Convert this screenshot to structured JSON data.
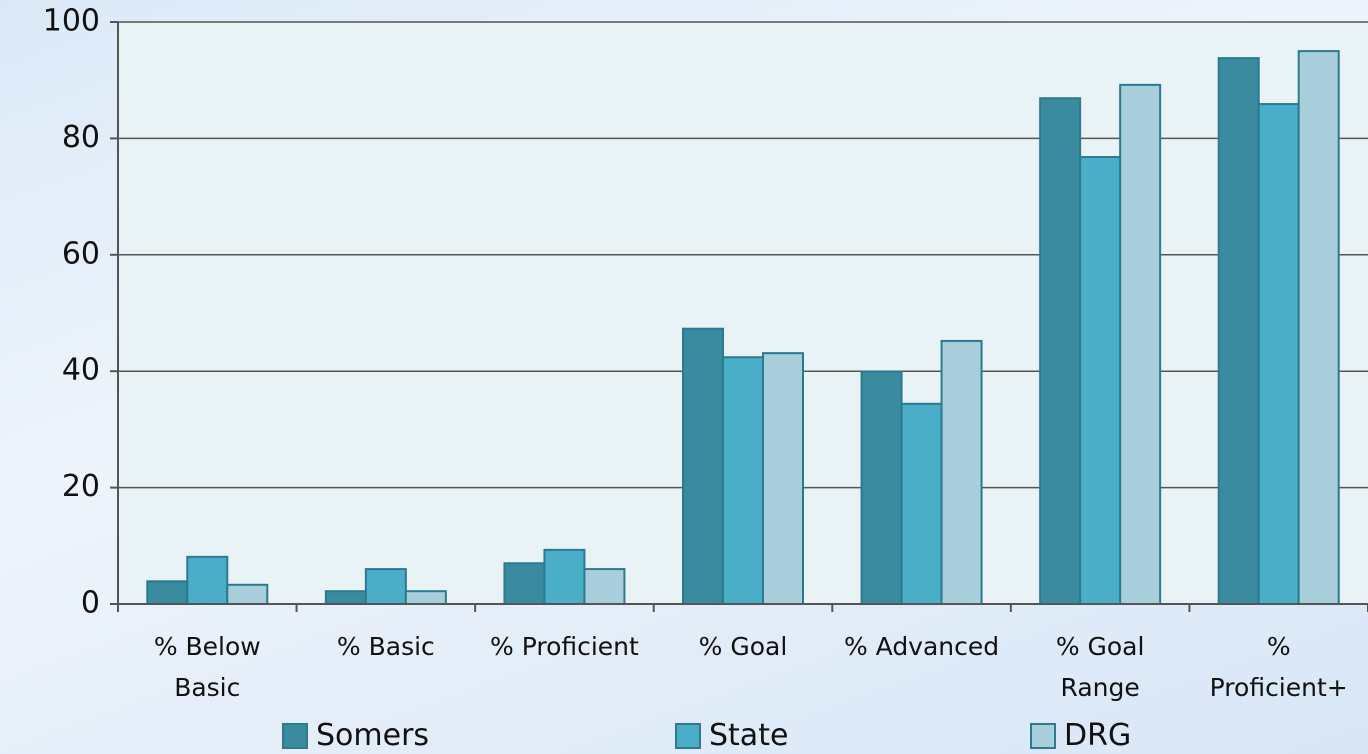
{
  "chart_data": {
    "type": "bar",
    "categories": [
      "% Below\nBasic",
      "% Basic",
      "% Proficient",
      "% Goal",
      "% Advanced",
      "% Goal\nRange",
      "%\nProficient+"
    ],
    "series": [
      {
        "name": "Somers",
        "color": "#3a8aa0",
        "values": [
          3.9,
          2.2,
          7,
          47.3,
          39.9,
          86.9,
          93.8
        ]
      },
      {
        "name": "State",
        "color": "#4aaec8",
        "values": [
          8.1,
          6,
          9.3,
          42.4,
          34.4,
          76.8,
          85.9
        ]
      },
      {
        "name": "DRG",
        "color": "#a8cedc",
        "values": [
          3.3,
          2.2,
          6,
          43.1,
          45.2,
          89.2,
          95
        ]
      }
    ],
    "ylim": [
      0,
      100
    ],
    "yticks": [
      0,
      20,
      40,
      60,
      80,
      100
    ],
    "grid": true
  }
}
